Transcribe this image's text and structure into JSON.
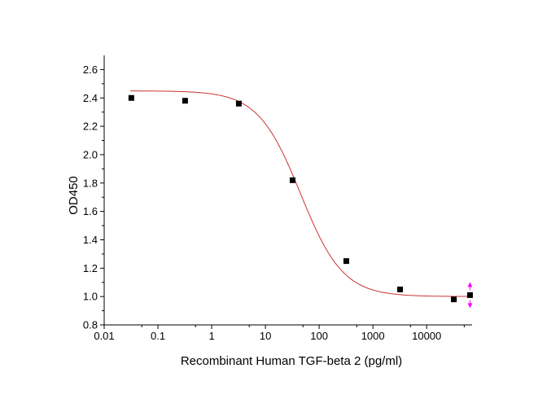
{
  "chart_data": {
    "type": "scatter",
    "xlabel": "Recombinant Human TGF-beta 2 (pg/ml)",
    "ylabel": "OD450",
    "xscale": "log",
    "xlim": [
      0.01,
      70000
    ],
    "ylim": [
      0.8,
      2.7
    ],
    "x_ticks": [
      0.01,
      0.1,
      1,
      10,
      100,
      1000,
      10000
    ],
    "x_tick_labels": [
      "0.01",
      "0.1",
      "1",
      "10",
      "100",
      "1000",
      "10000"
    ],
    "y_ticks": [
      0.8,
      1.0,
      1.2,
      1.4,
      1.6,
      1.8,
      2.0,
      2.2,
      2.4,
      2.6
    ],
    "y_tick_labels": [
      "0.8",
      "1.0",
      "1.2",
      "1.4",
      "1.6",
      "1.8",
      "2.0",
      "2.2",
      "2.4",
      "2.6"
    ],
    "grid": false,
    "points": {
      "x": [
        0.032,
        0.32,
        3.2,
        32,
        320,
        3200,
        32000,
        64000
      ],
      "y": [
        2.4,
        2.38,
        2.36,
        1.82,
        1.25,
        1.05,
        0.98,
        1.01
      ]
    },
    "fit": {
      "model": "4PL",
      "top": 2.45,
      "bottom": 1.0,
      "ec50": 45,
      "hill": 1.1
    },
    "colors": {
      "points": "#000000",
      "fit_line": "#cc3333",
      "marker_arrow": "#ff00ff"
    }
  }
}
